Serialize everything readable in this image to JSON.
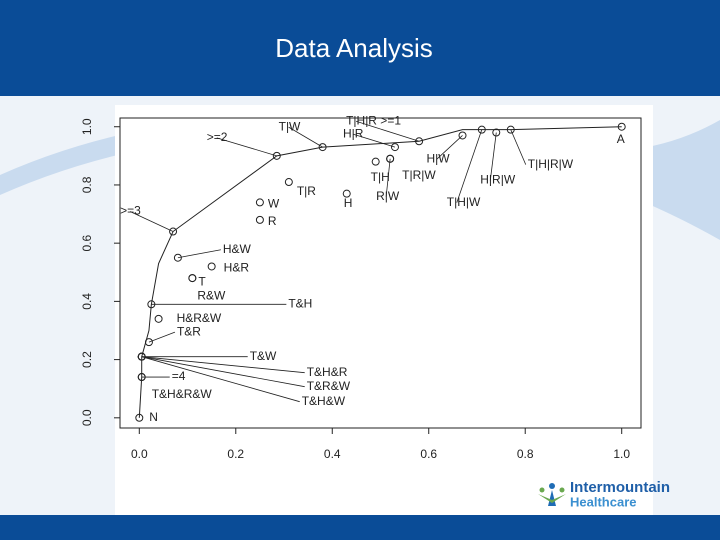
{
  "slide": {
    "title": "Data Analysis",
    "logo": [
      "Intermountain",
      "Healthcare"
    ]
  },
  "chart_data": {
    "type": "scatter",
    "xlim": [
      -0.04,
      1.04
    ],
    "ylim": [
      -0.035,
      1.03
    ],
    "xticks": [
      {
        "value": 0,
        "label": "0.0"
      },
      {
        "value": 0.2,
        "label": "0.2"
      },
      {
        "value": 0.4,
        "label": "0.4"
      },
      {
        "value": 0.6,
        "label": "0.6"
      },
      {
        "value": 0.8,
        "label": "0.8"
      },
      {
        "value": 1,
        "label": "1.0"
      }
    ],
    "yticks": [
      {
        "value": 0,
        "label": "0.0"
      },
      {
        "value": 0.2,
        "label": "0.2"
      },
      {
        "value": 0.4,
        "label": "0.4"
      },
      {
        "value": 0.6,
        "label": "0.6"
      },
      {
        "value": 0.8,
        "label": "0.8"
      },
      {
        "value": 1,
        "label": "1.0"
      }
    ],
    "series": [
      {
        "color": "#222222",
        "x": [
          0,
          0.005,
          0.005,
          0.02,
          0.025,
          0.04,
          0.07,
          0.285,
          0.38,
          0.58,
          0.67,
          0.71,
          0.77,
          1.0
        ],
        "values": [
          0,
          0.14,
          0.21,
          0.3,
          0.39,
          0.53,
          0.64,
          0.9,
          0.93,
          0.95,
          0.99,
          0.99,
          0.99,
          1.0
        ]
      },
      {
        "color": "#222222",
        "labels": [
          "N",
          "=4",
          "T&H&R&W",
          "T&W",
          "T&H&R",
          "T&R&W",
          "T&H&W",
          "T&R",
          "H&R&W",
          "T&H",
          "T",
          "R&W",
          "H&R",
          "H&W",
          ">=3",
          "R",
          "W",
          "T|R",
          ">=2",
          "T|W",
          "H",
          "T|H",
          "T|R|W",
          "R|W",
          "H|R",
          "T|H|R >=1",
          "H|W",
          "T|H|W",
          "H|R|W",
          "T|H|R|W",
          "A"
        ],
        "x": [
          0,
          0.005,
          0.005,
          0.005,
          0.005,
          0.005,
          0.005,
          0.02,
          0.04,
          0.025,
          0.11,
          0.11,
          0.15,
          0.08,
          0.07,
          0.25,
          0.25,
          0.31,
          0.285,
          0.38,
          0.43,
          0.49,
          0.52,
          0.52,
          0.53,
          0.58,
          0.67,
          0.71,
          0.74,
          0.77,
          1.0
        ],
        "values": [
          0,
          0.14,
          0.14,
          0.21,
          0.21,
          0.21,
          0.21,
          0.26,
          0.34,
          0.39,
          0.48,
          0.48,
          0.52,
          0.55,
          0.64,
          0.68,
          0.74,
          0.81,
          0.9,
          0.93,
          0.77,
          0.88,
          0.89,
          0.89,
          0.93,
          0.95,
          0.97,
          0.99,
          0.98,
          0.99,
          1.0
        ]
      }
    ]
  }
}
